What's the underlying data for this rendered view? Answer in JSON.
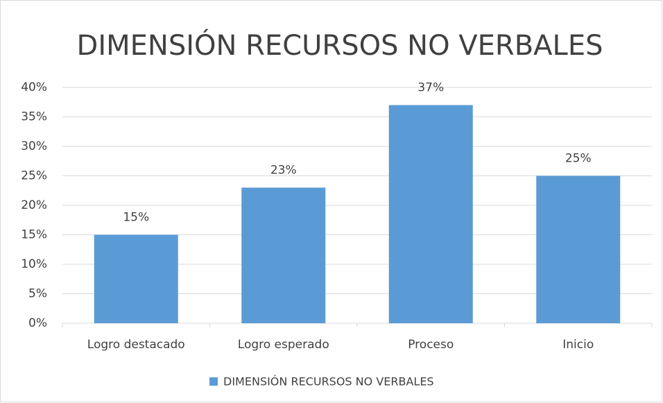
{
  "chart_data": {
    "type": "bar",
    "title": "DIMENSIÓN RECURSOS NO VERBALES",
    "categories": [
      "Logro destacado",
      "Logro esperado",
      "Proceso",
      "Inicio"
    ],
    "series": [
      {
        "name": "DIMENSIÓN RECURSOS NO VERBALES",
        "color": "#5b9bd5",
        "values": [
          15,
          23,
          37,
          25
        ],
        "value_labels": [
          "15%",
          "23%",
          "37%",
          "25%"
        ]
      }
    ],
    "ylim": [
      0,
      40
    ],
    "yticks": [
      {
        "value": 0,
        "label": "0%"
      },
      {
        "value": 5,
        "label": "5%"
      },
      {
        "value": 10,
        "label": "10%"
      },
      {
        "value": 15,
        "label": "15%"
      },
      {
        "value": 20,
        "label": "20%"
      },
      {
        "value": 25,
        "label": "25%"
      },
      {
        "value": 30,
        "label": "30%"
      },
      {
        "value": 35,
        "label": "35%"
      },
      {
        "value": 40,
        "label": "40%"
      }
    ],
    "grid": true,
    "legend": "bottom"
  }
}
